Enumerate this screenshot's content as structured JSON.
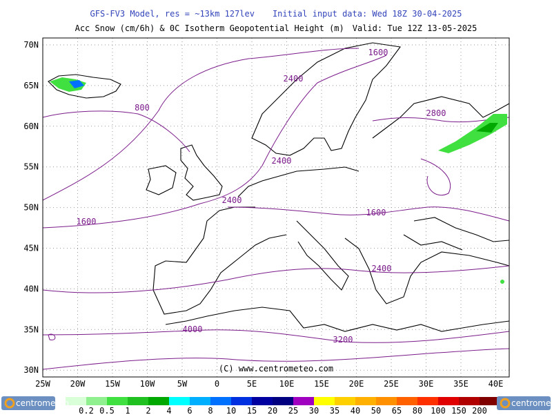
{
  "header": {
    "model": "GFS-FV3 Model, res = ~13km 127lev",
    "init": "Initial input data: Wed 18Z 30-04-2025",
    "field": "Acc Snow (cm/6h) & 0C Isotherm Geopotential Height (m)",
    "valid": "Valid: Tue 12Z 13-05-2025"
  },
  "map": {
    "lat_labels": [
      "70N",
      "65N",
      "60N",
      "55N",
      "50N",
      "45N",
      "40N",
      "35N",
      "30N"
    ],
    "lon_labels": [
      "25W",
      "20W",
      "15W",
      "10W",
      "5W",
      "0",
      "5E",
      "10E",
      "15E",
      "20E",
      "25E",
      "30E",
      "35E",
      "40E"
    ],
    "contour_labels": [
      "1600",
      "2400",
      "800",
      "2800",
      "2400",
      "2400",
      "1600",
      "1600",
      "2400",
      "4000",
      "3200"
    ],
    "copyright": "(C) www.centrometeo.com"
  },
  "legend": {
    "values": [
      "0.2",
      "0.5",
      "1",
      "2",
      "4",
      "6",
      "8",
      "10",
      "15",
      "20",
      "25",
      "30",
      "35",
      "40",
      "50",
      "65",
      "80",
      "100",
      "150",
      "200"
    ],
    "colors": [
      "#d8ffd8",
      "#90f090",
      "#40e040",
      "#20c020",
      "#00a800",
      "#00ffff",
      "#00b0ff",
      "#0070ff",
      "#0030e0",
      "#0000a0",
      "#000080",
      "#a000c0",
      "#ffff00",
      "#ffd000",
      "#ffb000",
      "#ff9000",
      "#ff6000",
      "#ff3000",
      "#e00000",
      "#b00000",
      "#800000"
    ],
    "logo": "centrometeo"
  }
}
